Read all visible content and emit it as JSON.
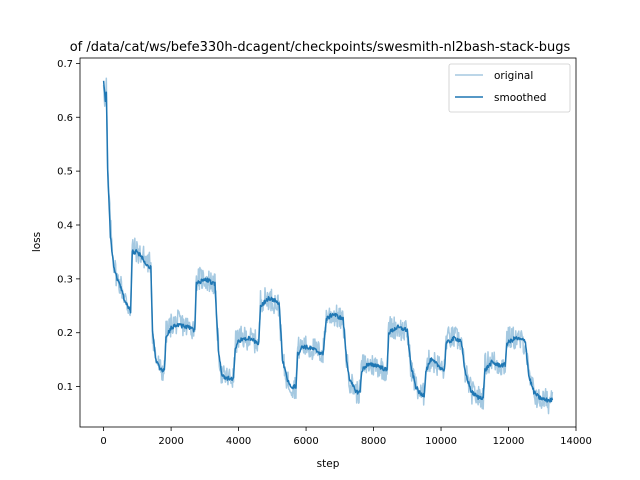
{
  "chart_data": {
    "type": "line",
    "title": "of /data/cat/ws/befe330h-dcagent/checkpoints/swesmith-nl2bash-stack-bugs",
    "xlabel": "step",
    "ylabel": "loss",
    "xlim": [
      -700,
      14000
    ],
    "ylim": [
      0.025,
      0.71
    ],
    "x_ticks": [
      0,
      2000,
      4000,
      6000,
      8000,
      10000,
      12000,
      14000
    ],
    "y_ticks": [
      0.1,
      0.2,
      0.3,
      0.4,
      0.5,
      0.6,
      0.7
    ],
    "grid": false,
    "legend_position": "top-right",
    "series": [
      {
        "name": "original",
        "color": "#1f77b4",
        "alpha": 0.4,
        "noise": 0.022,
        "points": [
          [
            0,
            0.67
          ],
          [
            50,
            0.62
          ],
          [
            80,
            0.66
          ],
          [
            120,
            0.5
          ],
          [
            200,
            0.4
          ],
          [
            300,
            0.33
          ],
          [
            400,
            0.3
          ],
          [
            500,
            0.29
          ],
          [
            600,
            0.27
          ],
          [
            700,
            0.25
          ],
          [
            800,
            0.245
          ],
          [
            850,
            0.36
          ],
          [
            1000,
            0.35
          ],
          [
            1200,
            0.34
          ],
          [
            1300,
            0.33
          ],
          [
            1400,
            0.33
          ],
          [
            1450,
            0.2
          ],
          [
            1550,
            0.15
          ],
          [
            1700,
            0.13
          ],
          [
            1800,
            0.13
          ],
          [
            1850,
            0.2
          ],
          [
            2000,
            0.215
          ],
          [
            2200,
            0.22
          ],
          [
            2500,
            0.21
          ],
          [
            2700,
            0.21
          ],
          [
            2750,
            0.3
          ],
          [
            3000,
            0.3
          ],
          [
            3300,
            0.29
          ],
          [
            3400,
            0.17
          ],
          [
            3500,
            0.12
          ],
          [
            3700,
            0.115
          ],
          [
            3850,
            0.115
          ],
          [
            3900,
            0.18
          ],
          [
            4000,
            0.19
          ],
          [
            4300,
            0.19
          ],
          [
            4600,
            0.18
          ],
          [
            4650,
            0.26
          ],
          [
            4900,
            0.265
          ],
          [
            5200,
            0.25
          ],
          [
            5300,
            0.15
          ],
          [
            5450,
            0.11
          ],
          [
            5600,
            0.1
          ],
          [
            5700,
            0.1
          ],
          [
            5750,
            0.17
          ],
          [
            5900,
            0.175
          ],
          [
            6200,
            0.17
          ],
          [
            6500,
            0.16
          ],
          [
            6600,
            0.23
          ],
          [
            6800,
            0.235
          ],
          [
            7100,
            0.22
          ],
          [
            7200,
            0.15
          ],
          [
            7300,
            0.11
          ],
          [
            7500,
            0.09
          ],
          [
            7600,
            0.09
          ],
          [
            7650,
            0.14
          ],
          [
            7800,
            0.14
          ],
          [
            8100,
            0.14
          ],
          [
            8400,
            0.13
          ],
          [
            8450,
            0.21
          ],
          [
            8700,
            0.21
          ],
          [
            9000,
            0.2
          ],
          [
            9100,
            0.14
          ],
          [
            9250,
            0.1
          ],
          [
            9400,
            0.085
          ],
          [
            9500,
            0.085
          ],
          [
            9550,
            0.14
          ],
          [
            9700,
            0.15
          ],
          [
            9900,
            0.14
          ],
          [
            10100,
            0.13
          ],
          [
            10150,
            0.19
          ],
          [
            10400,
            0.19
          ],
          [
            10600,
            0.185
          ],
          [
            10700,
            0.13
          ],
          [
            10900,
            0.09
          ],
          [
            11100,
            0.08
          ],
          [
            11250,
            0.08
          ],
          [
            11300,
            0.14
          ],
          [
            11500,
            0.15
          ],
          [
            11700,
            0.14
          ],
          [
            11900,
            0.14
          ],
          [
            11950,
            0.19
          ],
          [
            12200,
            0.19
          ],
          [
            12500,
            0.18
          ],
          [
            12600,
            0.12
          ],
          [
            12750,
            0.09
          ],
          [
            12900,
            0.075
          ],
          [
            13100,
            0.075
          ],
          [
            13200,
            0.07
          ],
          [
            13300,
            0.09
          ]
        ]
      },
      {
        "name": "smoothed",
        "color": "#1f77b4",
        "alpha": 1,
        "noise": 0.004,
        "points": [
          [
            0,
            0.67
          ],
          [
            50,
            0.63
          ],
          [
            80,
            0.65
          ],
          [
            120,
            0.5
          ],
          [
            200,
            0.38
          ],
          [
            300,
            0.32
          ],
          [
            400,
            0.3
          ],
          [
            500,
            0.285
          ],
          [
            600,
            0.265
          ],
          [
            700,
            0.25
          ],
          [
            800,
            0.24
          ],
          [
            850,
            0.35
          ],
          [
            1000,
            0.35
          ],
          [
            1200,
            0.335
          ],
          [
            1300,
            0.325
          ],
          [
            1400,
            0.32
          ],
          [
            1450,
            0.2
          ],
          [
            1550,
            0.15
          ],
          [
            1700,
            0.13
          ],
          [
            1800,
            0.13
          ],
          [
            1850,
            0.19
          ],
          [
            2000,
            0.21
          ],
          [
            2200,
            0.215
          ],
          [
            2500,
            0.21
          ],
          [
            2700,
            0.205
          ],
          [
            2750,
            0.29
          ],
          [
            3000,
            0.3
          ],
          [
            3300,
            0.29
          ],
          [
            3400,
            0.17
          ],
          [
            3500,
            0.12
          ],
          [
            3700,
            0.115
          ],
          [
            3850,
            0.115
          ],
          [
            3900,
            0.17
          ],
          [
            4000,
            0.185
          ],
          [
            4300,
            0.19
          ],
          [
            4600,
            0.18
          ],
          [
            4650,
            0.25
          ],
          [
            4900,
            0.265
          ],
          [
            5200,
            0.255
          ],
          [
            5300,
            0.15
          ],
          [
            5450,
            0.11
          ],
          [
            5600,
            0.1
          ],
          [
            5700,
            0.1
          ],
          [
            5750,
            0.16
          ],
          [
            5900,
            0.175
          ],
          [
            6200,
            0.17
          ],
          [
            6500,
            0.16
          ],
          [
            6600,
            0.225
          ],
          [
            6800,
            0.235
          ],
          [
            7100,
            0.225
          ],
          [
            7200,
            0.15
          ],
          [
            7300,
            0.11
          ],
          [
            7500,
            0.09
          ],
          [
            7600,
            0.09
          ],
          [
            7650,
            0.13
          ],
          [
            7800,
            0.14
          ],
          [
            8100,
            0.14
          ],
          [
            8400,
            0.13
          ],
          [
            8450,
            0.2
          ],
          [
            8700,
            0.21
          ],
          [
            9000,
            0.205
          ],
          [
            9100,
            0.14
          ],
          [
            9250,
            0.1
          ],
          [
            9400,
            0.085
          ],
          [
            9500,
            0.085
          ],
          [
            9550,
            0.13
          ],
          [
            9700,
            0.15
          ],
          [
            9900,
            0.14
          ],
          [
            10100,
            0.13
          ],
          [
            10150,
            0.18
          ],
          [
            10400,
            0.19
          ],
          [
            10600,
            0.185
          ],
          [
            10700,
            0.13
          ],
          [
            10900,
            0.09
          ],
          [
            11100,
            0.08
          ],
          [
            11250,
            0.08
          ],
          [
            11300,
            0.13
          ],
          [
            11500,
            0.145
          ],
          [
            11700,
            0.14
          ],
          [
            11900,
            0.14
          ],
          [
            11950,
            0.18
          ],
          [
            12200,
            0.19
          ],
          [
            12500,
            0.185
          ],
          [
            12600,
            0.12
          ],
          [
            12750,
            0.09
          ],
          [
            12900,
            0.08
          ],
          [
            13100,
            0.075
          ],
          [
            13200,
            0.075
          ],
          [
            13300,
            0.075
          ]
        ]
      }
    ]
  }
}
